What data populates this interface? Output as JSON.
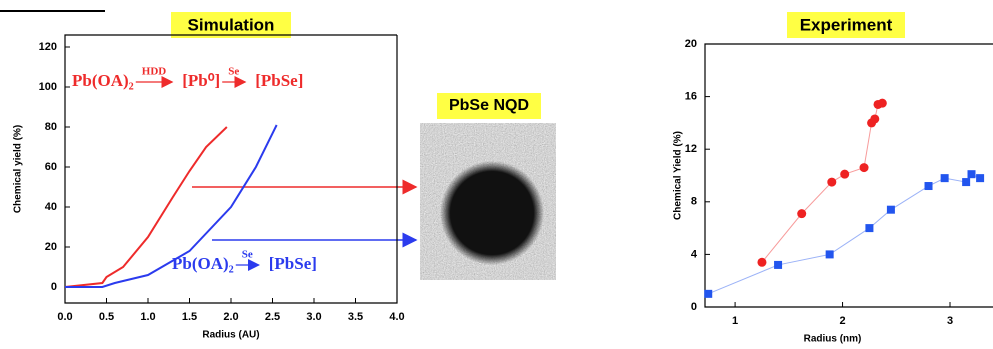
{
  "chart_data": [
    {
      "type": "line",
      "title": "Simulation",
      "xlabel": "Radius (AU)",
      "ylabel": "Chemical yield (%)",
      "xlim": [
        0,
        4
      ],
      "ylim": [
        -8,
        126
      ],
      "xticks": [
        {
          "value": 0,
          "label": "0.0"
        },
        {
          "value": 0.5,
          "label": "0.5"
        },
        {
          "value": 1,
          "label": "1.0"
        },
        {
          "value": 1.5,
          "label": "1.5"
        },
        {
          "value": 2,
          "label": "2.0"
        },
        {
          "value": 2.5,
          "label": "2.5"
        },
        {
          "value": 3,
          "label": "3.0"
        },
        {
          "value": 3.5,
          "label": "3.5"
        },
        {
          "value": 4,
          "label": "4.0"
        }
      ],
      "yticks": [
        0,
        20,
        40,
        60,
        80,
        100,
        120
      ],
      "series": [
        {
          "color": "#ee2b2b",
          "x": [
            0,
            0.45,
            0.5,
            0.7,
            1.0,
            1.3,
            1.5,
            1.7,
            1.95
          ],
          "values": [
            0,
            2,
            5,
            10,
            25,
            45,
            58,
            70,
            80
          ]
        },
        {
          "color": "#2b3bee",
          "x": [
            0,
            0.45,
            0.6,
            1.0,
            1.5,
            2.0,
            2.3,
            2.55
          ],
          "values": [
            0,
            0,
            2,
            6,
            18,
            40,
            60,
            81
          ]
        }
      ],
      "annotations_red": [
        "Pb(OA)₂",
        "HDD",
        "[Pb⁰]",
        "Se",
        "[PbSe]"
      ],
      "annotations_blue": [
        "Pb(OA)₂",
        "Se",
        "[PbSe]"
      ]
    },
    {
      "type": "line",
      "title": "Experiment",
      "xlabel": "Radius (nm)",
      "ylabel": "Chemical Yield (%)",
      "xlim": [
        0.72,
        3.4
      ],
      "ylim": [
        0,
        20
      ],
      "xticks": [
        1,
        2,
        3
      ],
      "yticks": [
        0,
        4,
        8,
        12,
        16,
        20
      ],
      "series": [
        {
          "color": "#ee2222",
          "marker": "circle",
          "x": [
            1.25,
            1.62,
            1.9,
            2.02,
            2.2,
            2.27,
            2.3,
            2.33,
            2.37
          ],
          "values": [
            3.4,
            7.1,
            9.5,
            10.1,
            10.6,
            14,
            14.3,
            15.4,
            15.5
          ]
        },
        {
          "color": "#2255ee",
          "marker": "square",
          "x": [
            0.75,
            1.4,
            1.88,
            2.25,
            2.45,
            2.8,
            2.95,
            3.15,
            3.2,
            3.28
          ],
          "values": [
            1,
            3.2,
            4,
            6,
            7.4,
            9.2,
            9.8,
            9.5,
            10.1,
            9.8
          ]
        }
      ]
    }
  ],
  "image_label": "PbSe NQD"
}
